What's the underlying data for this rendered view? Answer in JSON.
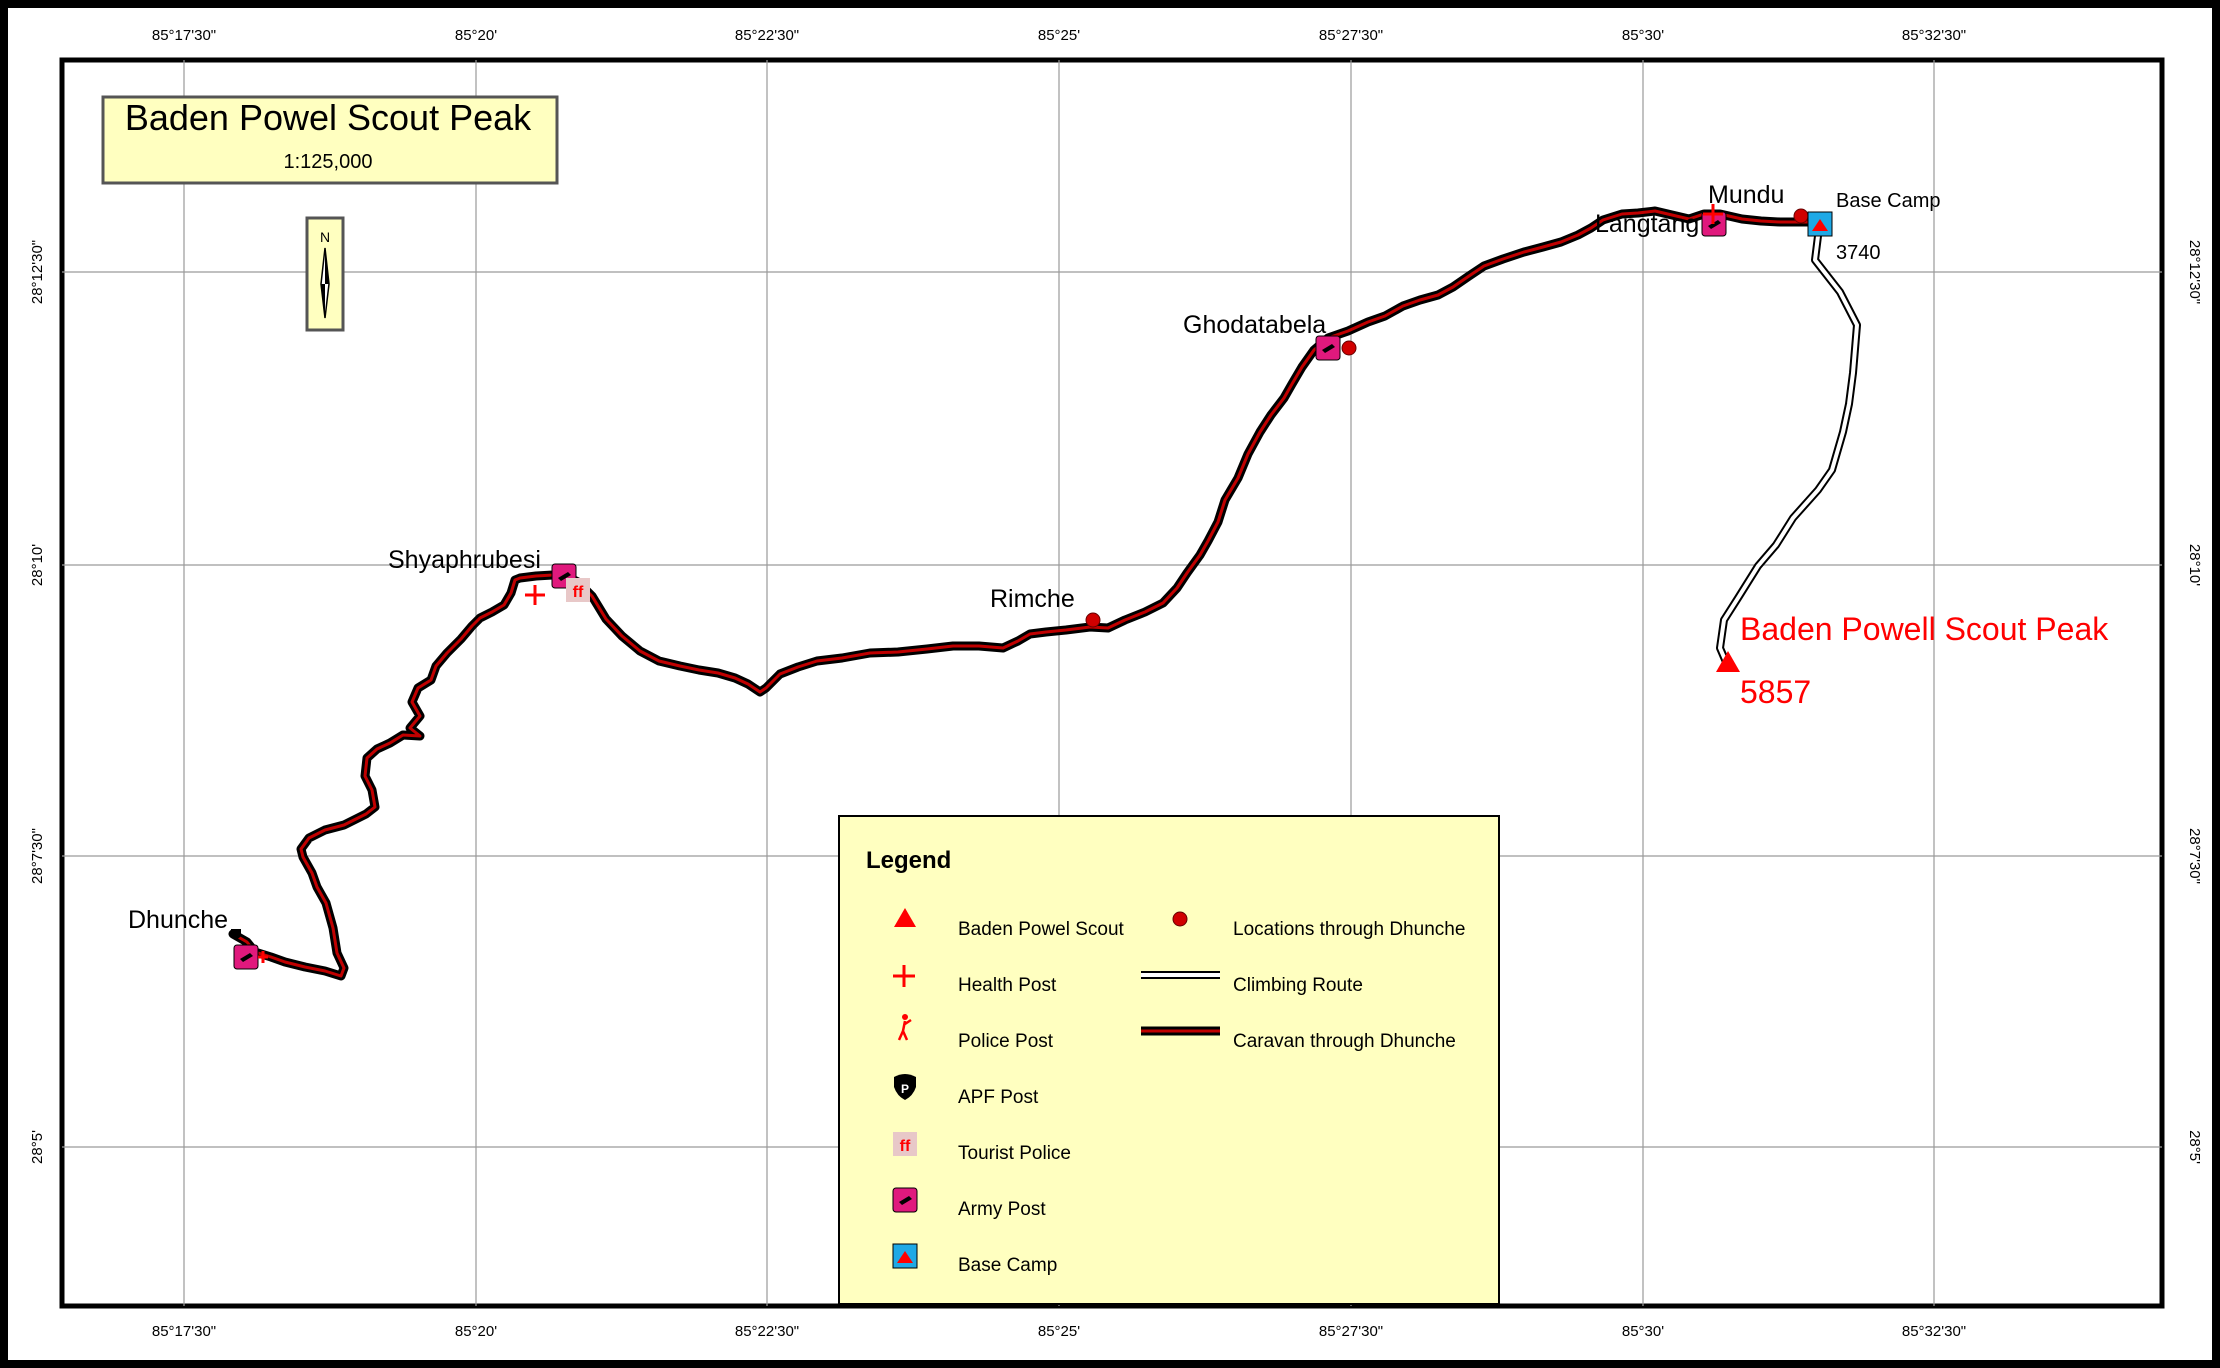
{
  "map": {
    "title": "Baden Powel Scout Peak",
    "scale": "1:125,000",
    "north_arrow": "N",
    "lon_labels": [
      "85°17'30\"",
      "85°20'",
      "85°22'30\"",
      "85°25'",
      "85°27'30\"",
      "85°30'",
      "85°32'30\""
    ],
    "lat_labels": [
      "28°12'30\"",
      "28°10'",
      "28°7'30\"",
      "28°5'"
    ],
    "places": {
      "dhunche": "Dhunche",
      "shyaphrubesi": "Shyaphrubesi",
      "rimche": "Rimche",
      "ghodatabela": "Ghodatabela",
      "langtang": "Langtang",
      "mundu": "Mundu",
      "base_camp": "Base Camp",
      "base_camp_elev": "3740",
      "peak": "Baden Powell Scout Peak",
      "peak_elev": "5857"
    },
    "colors": {
      "caravan": "#c00000",
      "climbing": "#ffffff",
      "peak": "#ff0000",
      "army": "#e0197d",
      "base_camp": "#1fa9e6",
      "legend_bg": "#ffffc0"
    }
  },
  "legend": {
    "title": "Legend",
    "items": [
      {
        "label": "Baden Powel Scout",
        "icon": "peak-triangle-icon"
      },
      {
        "label": "Health Post",
        "icon": "health-cross-icon"
      },
      {
        "label": "Police Post",
        "icon": "police-figure-icon"
      },
      {
        "label": "APF Post",
        "icon": "apf-shield-icon"
      },
      {
        "label": "Tourist Police",
        "icon": "tourist-police-icon"
      },
      {
        "label": "Army Post",
        "icon": "army-post-icon"
      },
      {
        "label": "Base Camp",
        "icon": "base-camp-icon"
      },
      {
        "label": "Locations through Dhunche",
        "icon": "location-dot-icon"
      },
      {
        "label": "Climbing Route",
        "icon": "climbing-route-icon"
      },
      {
        "label": "Caravan through Dhunche",
        "icon": "caravan-route-icon"
      }
    ]
  }
}
